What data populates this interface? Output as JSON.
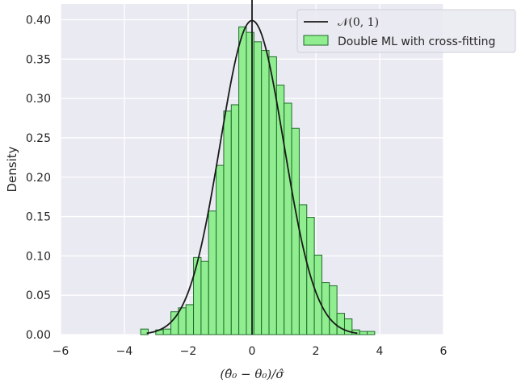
{
  "chart_data": {
    "type": "bar",
    "xlabel": "(θ̂₀ − θ₀)/σ̂",
    "ylabel": "Density",
    "xlim": [
      -6,
      6
    ],
    "ylim": [
      0,
      0.42
    ],
    "xticks": [
      -6,
      -4,
      -2,
      0,
      2,
      4,
      6
    ],
    "xtick_labels": [
      "−6",
      "−4",
      "−2",
      "0",
      "2",
      "4",
      "6"
    ],
    "yticks": [
      0.0,
      0.05,
      0.1,
      0.15,
      0.2,
      0.25,
      0.3,
      0.35,
      0.4
    ],
    "ytick_labels": [
      "0.00",
      "0.05",
      "0.10",
      "0.15",
      "0.20",
      "0.25",
      "0.30",
      "0.35",
      "0.40"
    ],
    "grid": true,
    "background": "#eaeaf2",
    "bin_edges_start": -3.49,
    "bin_width": 0.2366,
    "histogram": {
      "name": "Double ML with cross-fitting",
      "fill": "#90ee90",
      "edge": "#1f6b2a",
      "densities": [
        0.007,
        0.0,
        0.006,
        0.007,
        0.029,
        0.034,
        0.038,
        0.098,
        0.093,
        0.157,
        0.215,
        0.284,
        0.292,
        0.391,
        0.384,
        0.372,
        0.361,
        0.353,
        0.317,
        0.294,
        0.262,
        0.165,
        0.149,
        0.101,
        0.066,
        0.062,
        0.027,
        0.02,
        0.006,
        0.004,
        0.004
      ]
    },
    "reference_curve": {
      "name": "𝒩(0, 1)",
      "color": "#1a1a1a",
      "mean": 0,
      "sd": 1
    },
    "vertical_line": {
      "x": 0,
      "color": "#1a1a1a"
    },
    "legend": {
      "placement": "top-right",
      "entries": [
        "𝒩(0, 1)",
        "Double ML with cross-fitting"
      ]
    }
  }
}
